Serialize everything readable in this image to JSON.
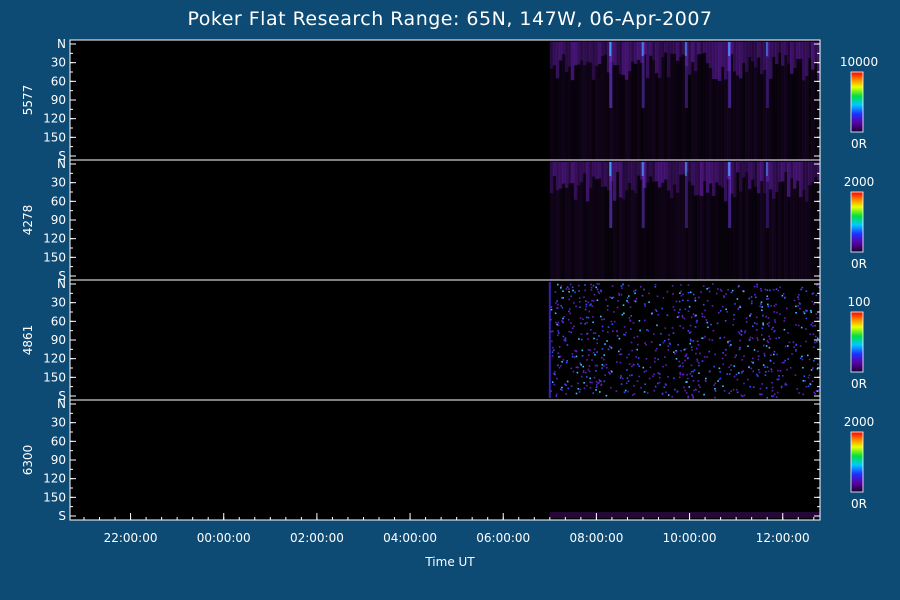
{
  "chart": {
    "title": "Poker Flat Research Range: 65N, 147W, 06-Apr-2007",
    "xlabel": "Time UT"
  },
  "chart_data": {
    "type": "heatmap",
    "title": "Poker Flat Research Range: 65N, 147W, 06-Apr-2007",
    "xlabel": "Time UT",
    "x_ticks": [
      "22:00:00",
      "00:00:00",
      "02:00:00",
      "04:00:00",
      "06:00:00",
      "08:00:00",
      "10:00:00",
      "12:00:00"
    ],
    "x_range_hours": [
      20.7,
      12.8
    ],
    "y_ticks": [
      "N",
      "30",
      "60",
      "90",
      "120",
      "150",
      "S"
    ],
    "y_range": [
      0,
      180
    ],
    "data_start_hour": 7.0,
    "panels": [
      {
        "name": "5577",
        "colorbar_max": "10000",
        "colorbar_min": "0R",
        "intensity": "medium",
        "style": "aurora"
      },
      {
        "name": "4278",
        "colorbar_max": "2000",
        "colorbar_min": "0R",
        "intensity": "medium",
        "style": "aurora"
      },
      {
        "name": "4861",
        "colorbar_max": "100",
        "colorbar_min": "0R",
        "intensity": "noise",
        "style": "noise"
      },
      {
        "name": "6300",
        "colorbar_max": "2000",
        "colorbar_min": "0R",
        "intensity": "faint",
        "style": "faint"
      }
    ],
    "colorbar_colors": [
      "#000000",
      "#3a0070",
      "#2020ff",
      "#00c0ff",
      "#00e000",
      "#ffff00",
      "#ff8000",
      "#ff0000"
    ]
  }
}
